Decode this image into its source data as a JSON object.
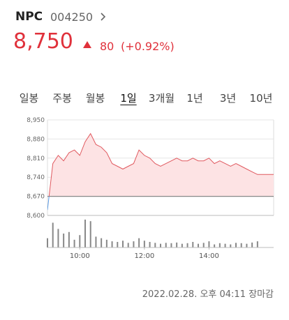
{
  "header": {
    "name": "NPC",
    "code": "004250",
    "price": "8,750",
    "change": "80",
    "change_pct": "(+0.92%)"
  },
  "tabs": {
    "items": [
      "일봉",
      "주봉",
      "월봉",
      "1일",
      "3개월",
      "1년",
      "3년",
      "10년"
    ],
    "selected": 3
  },
  "timestamp": "2022.02.28. 오후 04:11 장마감",
  "chart_data": {
    "type": "line",
    "x": [
      "09:00",
      "09:10",
      "09:20",
      "09:30",
      "09:40",
      "09:50",
      "10:00",
      "10:10",
      "10:20",
      "10:30",
      "10:40",
      "10:50",
      "11:00",
      "11:10",
      "11:20",
      "11:30",
      "11:40",
      "11:50",
      "12:00",
      "12:10",
      "12:20",
      "12:30",
      "12:40",
      "12:50",
      "13:00",
      "13:10",
      "13:20",
      "13:30",
      "13:40",
      "13:50",
      "14:00",
      "14:10",
      "14:20",
      "14:30",
      "14:40",
      "14:50",
      "15:00",
      "15:10",
      "15:20",
      "15:30",
      "15:40",
      "15:50",
      "16:00"
    ],
    "series": [
      {
        "name": "price",
        "color": "#e0595f",
        "values": [
          8620,
          8790,
          8820,
          8800,
          8830,
          8840,
          8820,
          8870,
          8900,
          8860,
          8850,
          8830,
          8790,
          8780,
          8770,
          8780,
          8790,
          8840,
          8820,
          8810,
          8790,
          8780,
          8790,
          8800,
          8810,
          8800,
          8800,
          8810,
          8800,
          8800,
          8810,
          8790,
          8800,
          8790,
          8780,
          8790,
          8780,
          8770,
          8760,
          8750,
          8750,
          8750,
          8750
        ]
      },
      {
        "name": "volume",
        "color": "#888888",
        "values": [
          30,
          80,
          60,
          45,
          50,
          25,
          40,
          90,
          85,
          35,
          30,
          25,
          20,
          18,
          22,
          15,
          20,
          30,
          22,
          18,
          15,
          12,
          15,
          14,
          16,
          12,
          14,
          18,
          12,
          15,
          20,
          10,
          14,
          12,
          10,
          15,
          14,
          12,
          16,
          20,
          0,
          0,
          0
        ]
      }
    ],
    "reference": 8670,
    "xlim": [
      "09:00",
      "16:00"
    ],
    "xticks": [
      "10:00",
      "12:00",
      "14:00"
    ],
    "ylim": [
      8600,
      8950
    ],
    "yticks": [
      {
        "value": 8600,
        "label": "8,600"
      },
      {
        "value": 8670,
        "label": "8,670"
      },
      {
        "value": 8740,
        "label": "8,740"
      },
      {
        "value": 8810,
        "label": "8,810"
      },
      {
        "value": 8880,
        "label": "8,880"
      },
      {
        "value": 8950,
        "label": "8,950"
      }
    ],
    "grid": true,
    "fill_color": "#fde3e4",
    "below_color": "#5b9be6"
  }
}
